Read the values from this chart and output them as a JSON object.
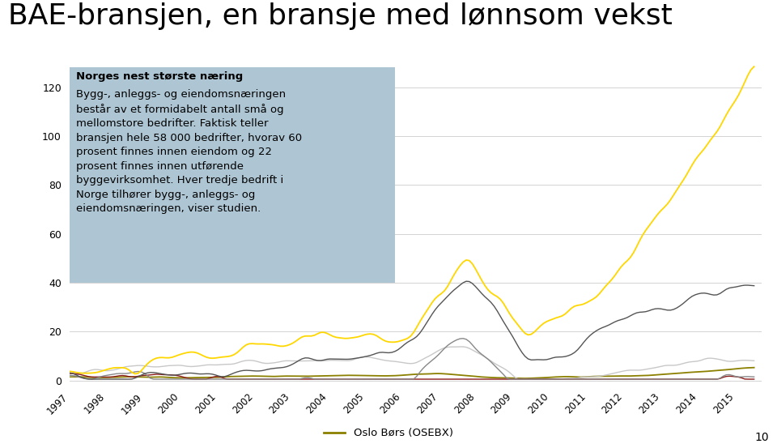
{
  "title": "BAE-bransjen, en bransje med lønnsom vekst",
  "title_fontsize": 26,
  "background_color": "#ffffff",
  "plot_bg_color": "#ffffff",
  "annotation_bg": "#aec6d4",
  "annotation_title": "Norges nest største næring",
  "annotation_text": "Bygg-, anleggs- og eiendomsnæringen\nbestår av et formidabelt antall små og\nmellomstore bedrifter. Faktisk teller\nbransjen hele 58 000 bedrifter, hvorav 60\nprosent finnes innen eiendom og 22\nprosent finnes innen utførende\nbyggevirksomhet. Hver tredje bedrift i\nNorge tilhører bygg-, anleggs- og\neiendomsnæringen, viser studien.",
  "years": [
    "1997",
    "1998",
    "1999",
    "2000",
    "2001",
    "2002",
    "2003",
    "2004",
    "2005",
    "2006",
    "2007",
    "2008",
    "2009",
    "2010",
    "2011",
    "2012",
    "2013",
    "2014",
    "2015"
  ],
  "ylabel_values": [
    0,
    20,
    40,
    60,
    80,
    100,
    120
  ],
  "ylim": [
    -2,
    130
  ],
  "legend_line_color": "#8B8000",
  "legend_text": "Oslo Børs (OSEBX)",
  "page_number": "10",
  "line_colors": {
    "dark_gray": "#555555",
    "mid_gray": "#888888",
    "light_gray": "#c8c8c8",
    "dark_red": "#8B1A1A",
    "olive": "#8B8000",
    "yellow": "#FFD700"
  }
}
